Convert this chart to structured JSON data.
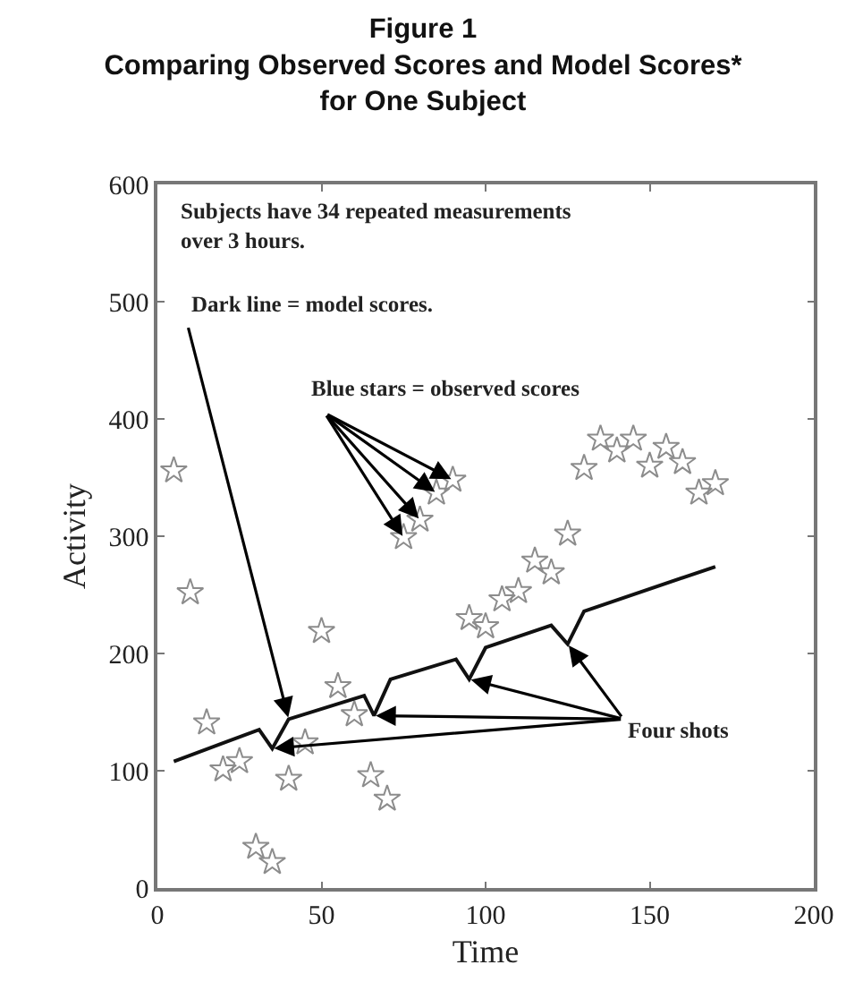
{
  "chart_data": {
    "type": "scatter",
    "title": "Figure 1\nComparing Observed Scores and Model Scores*\nfor One Subject",
    "xlabel": "Time",
    "ylabel": "Activity",
    "xlim": [
      0,
      200
    ],
    "xticks": [
      0,
      50,
      100,
      150,
      200
    ],
    "ylim": [
      0,
      600
    ],
    "yticks": [
      0,
      100,
      200,
      300,
      400,
      500,
      600
    ],
    "grid": false,
    "series": [
      {
        "marker": "star",
        "color": "#8c8c8c",
        "x": [
          5,
          10,
          15,
          20,
          25,
          30,
          35,
          40,
          45,
          50,
          55,
          60,
          65,
          70,
          75,
          80,
          85,
          90,
          95,
          100,
          105,
          110,
          115,
          120,
          125,
          130,
          135,
          140,
          145,
          150,
          155,
          160,
          165,
          170
        ],
        "values": [
          356,
          252,
          141,
          101,
          108,
          35,
          22,
          93,
          124,
          219,
          172,
          148,
          96,
          76,
          299,
          314,
          337,
          348,
          230,
          223,
          246,
          253,
          279,
          269,
          302,
          358,
          383,
          373,
          383,
          360,
          376,
          363,
          337,
          345
        ]
      },
      {
        "type": "line",
        "marker": "none",
        "line_style": "solid",
        "color": "#111111",
        "x": [
          5,
          31,
          35,
          40,
          63,
          66,
          71,
          91,
          95,
          100,
          120,
          125,
          130,
          170
        ],
        "values": [
          108,
          135,
          119,
          144,
          164,
          147,
          178,
          195,
          178,
          205,
          224,
          208,
          236,
          274
        ]
      }
    ],
    "annotations": [
      "Subjects have 34 repeated measurements\nover 3 hours.",
      {
        "text": "Dark line = model scores.",
        "x": 40,
        "y": 144
      },
      {
        "text": "Blue stars = observed scores",
        "x": 80,
        "y": 314
      },
      {
        "text": "Four shots",
        "x": 66,
        "y": 147
      }
    ]
  }
}
